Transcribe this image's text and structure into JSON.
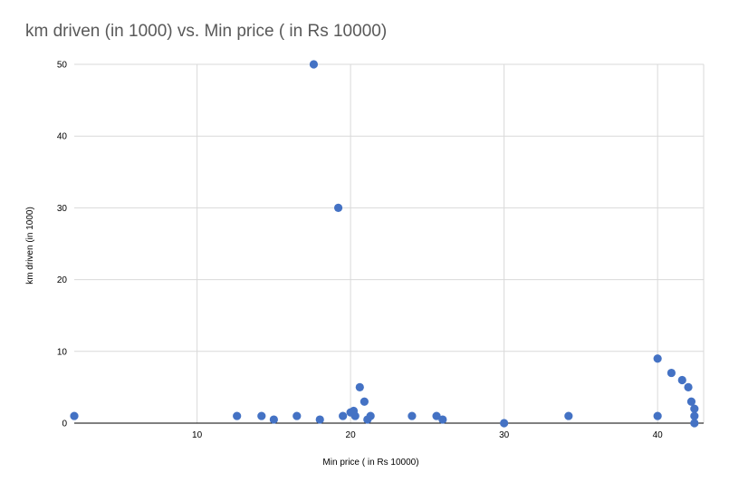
{
  "chart_data": {
    "type": "scatter",
    "title": "km driven (in 1000) vs. Min price ( in Rs 10000)",
    "xlabel": "Min price ( in Rs 10000)",
    "ylabel": "km driven (in 1000)",
    "xlim": [
      2,
      43
    ],
    "ylim": [
      0,
      50
    ],
    "xticks": [
      10,
      20,
      30,
      40
    ],
    "yticks": [
      0,
      10,
      20,
      30,
      40,
      50
    ],
    "grid": true,
    "legend": "none",
    "color": "#4472C4",
    "points": [
      {
        "x": 2.0,
        "y": 1.0
      },
      {
        "x": 12.6,
        "y": 1.0
      },
      {
        "x": 14.2,
        "y": 1.0
      },
      {
        "x": 15.0,
        "y": 0.5
      },
      {
        "x": 16.5,
        "y": 1.0
      },
      {
        "x": 17.6,
        "y": 50.0
      },
      {
        "x": 18.0,
        "y": 0.5
      },
      {
        "x": 19.2,
        "y": 30.0
      },
      {
        "x": 19.5,
        "y": 1.0
      },
      {
        "x": 20.0,
        "y": 1.5
      },
      {
        "x": 20.2,
        "y": 1.7
      },
      {
        "x": 20.3,
        "y": 1.0
      },
      {
        "x": 20.6,
        "y": 5.0
      },
      {
        "x": 20.9,
        "y": 3.0
      },
      {
        "x": 21.1,
        "y": 0.5
      },
      {
        "x": 21.3,
        "y": 1.0
      },
      {
        "x": 24.0,
        "y": 1.0
      },
      {
        "x": 25.6,
        "y": 1.0
      },
      {
        "x": 26.0,
        "y": 0.5
      },
      {
        "x": 30.0,
        "y": 0.0
      },
      {
        "x": 34.2,
        "y": 1.0
      },
      {
        "x": 40.0,
        "y": 9.0
      },
      {
        "x": 40.0,
        "y": 1.0
      },
      {
        "x": 40.9,
        "y": 7.0
      },
      {
        "x": 41.6,
        "y": 6.0
      },
      {
        "x": 42.0,
        "y": 5.0
      },
      {
        "x": 42.2,
        "y": 3.0
      },
      {
        "x": 42.4,
        "y": 2.0
      },
      {
        "x": 42.4,
        "y": 1.0
      },
      {
        "x": 42.4,
        "y": 0.0
      }
    ]
  }
}
